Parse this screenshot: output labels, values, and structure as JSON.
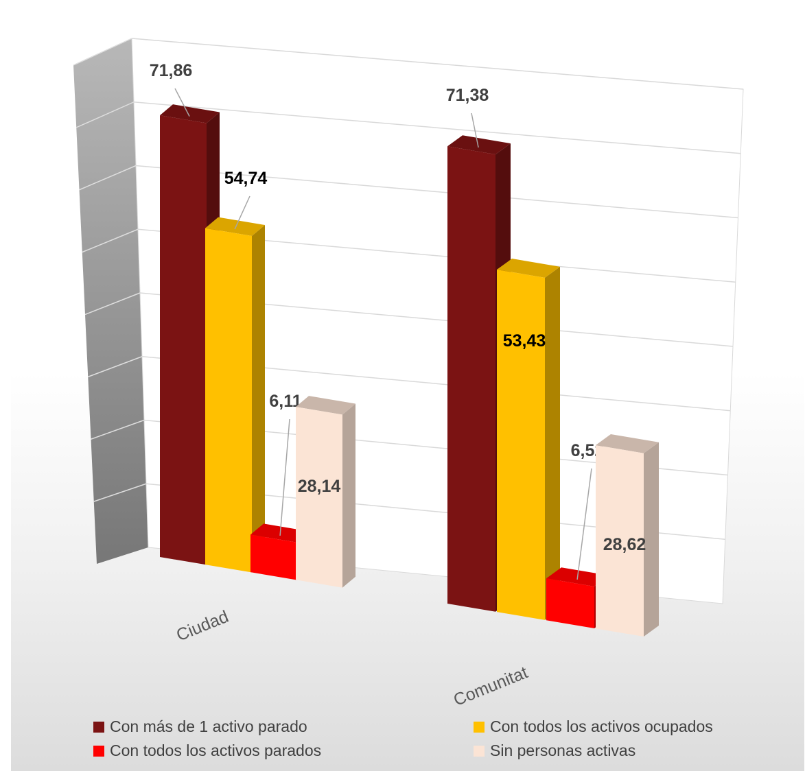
{
  "chart_data": {
    "type": "bar",
    "categories": [
      "Ciudad",
      "Comunitat"
    ],
    "series": [
      {
        "name": "Con  más de 1 activo parado",
        "values": [
          71.86,
          71.38
        ],
        "labels": [
          "71,86",
          "71,38"
        ],
        "color": "#7b1313"
      },
      {
        "name": "Con todos los activos ocupados",
        "values": [
          54.74,
          53.43
        ],
        "labels": [
          "54,74",
          "53,43"
        ],
        "color": "#ffc000"
      },
      {
        "name": "Con todos los activos parados",
        "values": [
          6.11,
          6.52
        ],
        "labels": [
          "6,11",
          "6,52"
        ],
        "color": "#ff0000"
      },
      {
        "name": "Sin personas activas",
        "values": [
          28.14,
          28.62
        ],
        "labels": [
          "28,14",
          "28,62"
        ],
        "color": "#fbe4d5"
      }
    ],
    "title": "",
    "xlabel": "",
    "ylabel": "",
    "ylim": [
      0,
      80
    ],
    "y_tick_labels_shown": false,
    "grid": true,
    "view": "3d",
    "legend_position": "bottom"
  }
}
